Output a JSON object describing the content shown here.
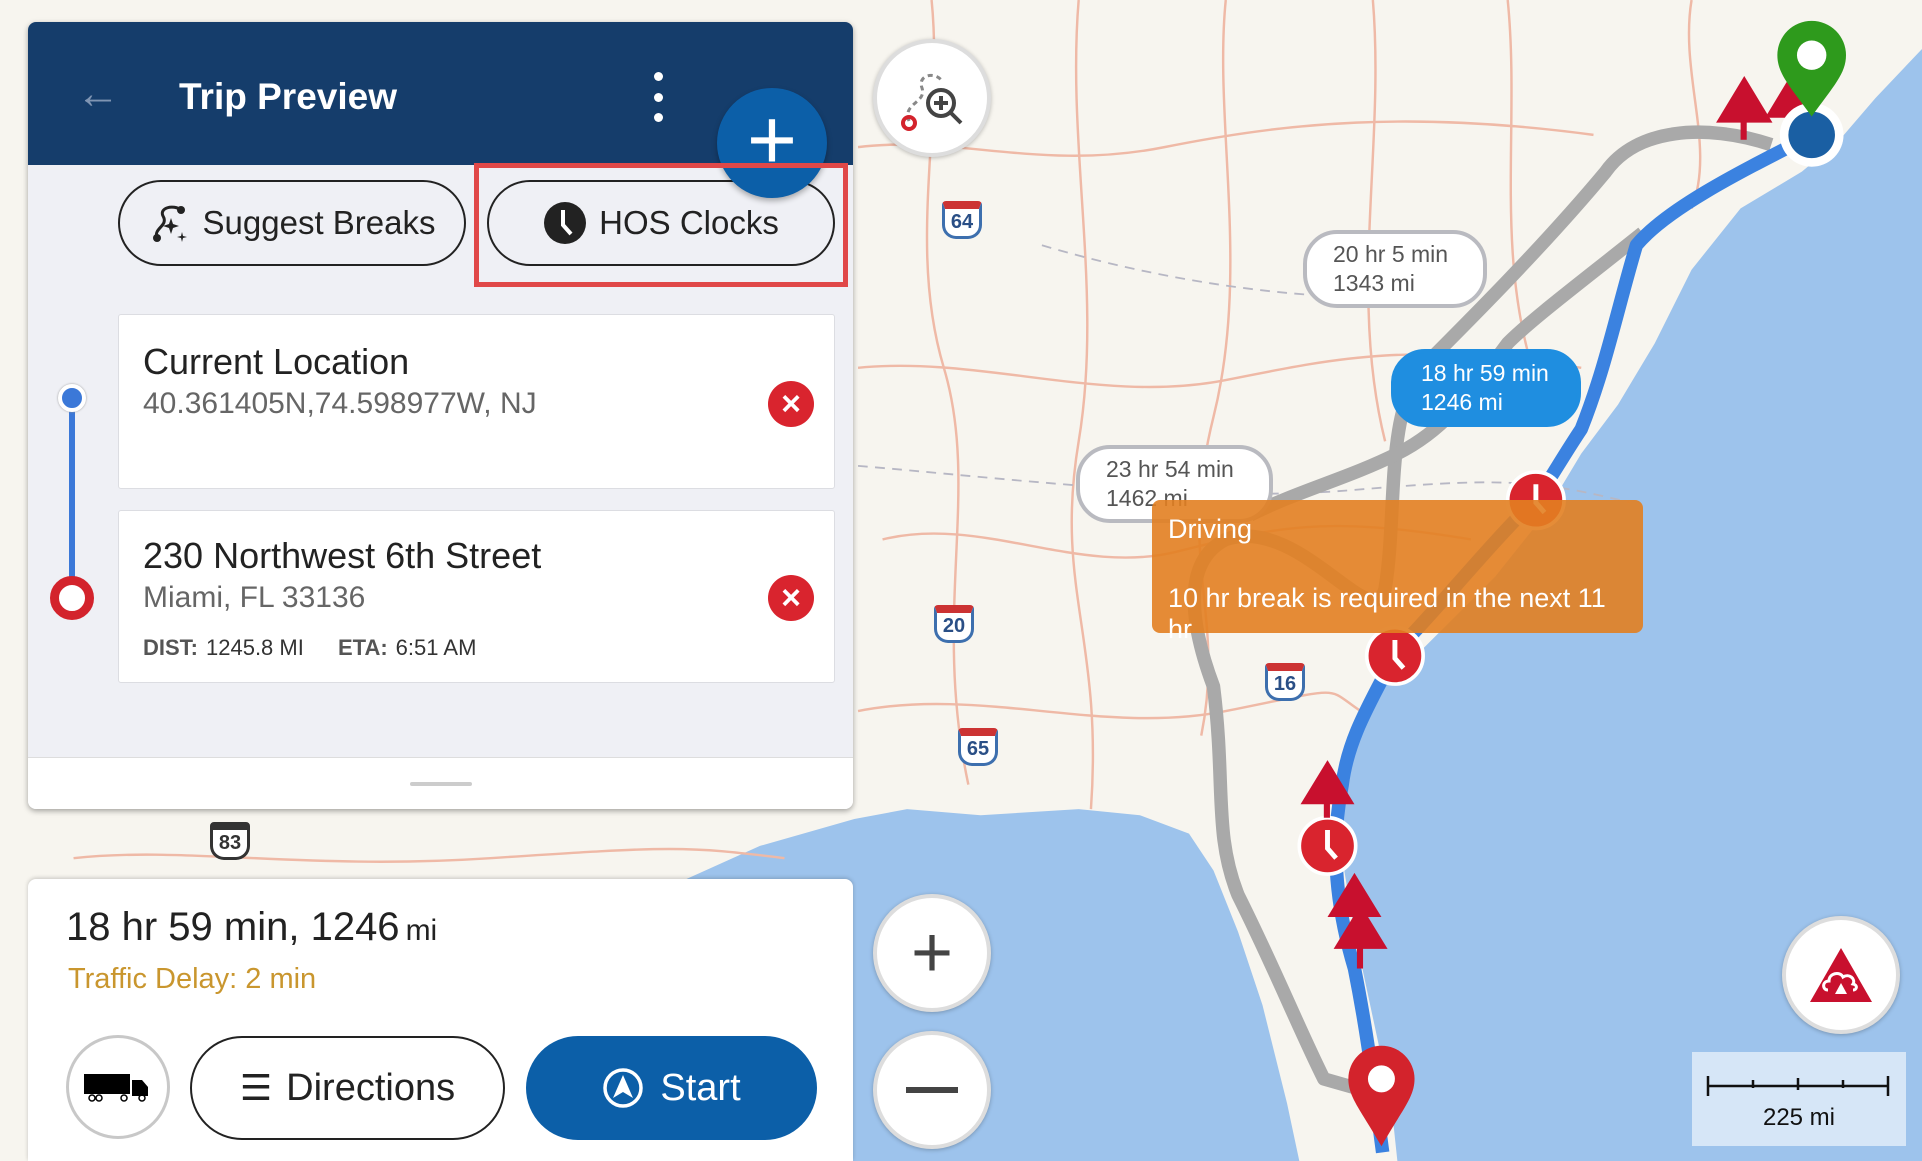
{
  "header": {
    "title": "Trip Preview",
    "back_icon": "arrow-left-icon",
    "menu_icon": "more-vertical-icon",
    "add_icon": "plus-icon"
  },
  "actions": {
    "suggest_breaks": "Suggest Breaks",
    "hos_clocks": "HOS Clocks"
  },
  "stops": [
    {
      "name": "Current Location",
      "address": "40.361405N,74.598977W, NJ"
    },
    {
      "name": "230 Northwest 6th Street",
      "address": "Miami, FL 33136",
      "dist_label": "DIST:",
      "dist": "1245.8 MI",
      "eta_label": "ETA:",
      "eta": "6:51 AM"
    }
  ],
  "summary": {
    "time_dist": "18 hr 59 min, 1246",
    "unit": "mi",
    "traffic": "Traffic Delay: 2 min"
  },
  "buttons": {
    "directions": "Directions",
    "start": "Start",
    "vehicle_icon": "truck-icon"
  },
  "map": {
    "routes": [
      {
        "time": "20 hr 5 min",
        "dist": "1343 mi",
        "selected": false
      },
      {
        "time": "18 hr 59 min",
        "dist": "1246 mi",
        "selected": true
      },
      {
        "time": "23 hr 54 min",
        "dist": "1462 mi",
        "selected": false
      }
    ],
    "tooltip": {
      "title": "Driving",
      "message": "10 hr break is required in the next 11 hr"
    },
    "shields": [
      "64",
      "20",
      "16",
      "65",
      "83"
    ],
    "scale": "225 mi",
    "colors": {
      "route_selected": "#3b82e0",
      "route_alt": "#a9a9a9",
      "ocean": "#9dc3ec",
      "header": "#153d6b",
      "accent": "#0c5fa8",
      "alert": "#d9242e",
      "tooltip": "#e28021",
      "traffic": "#c9962e"
    }
  }
}
